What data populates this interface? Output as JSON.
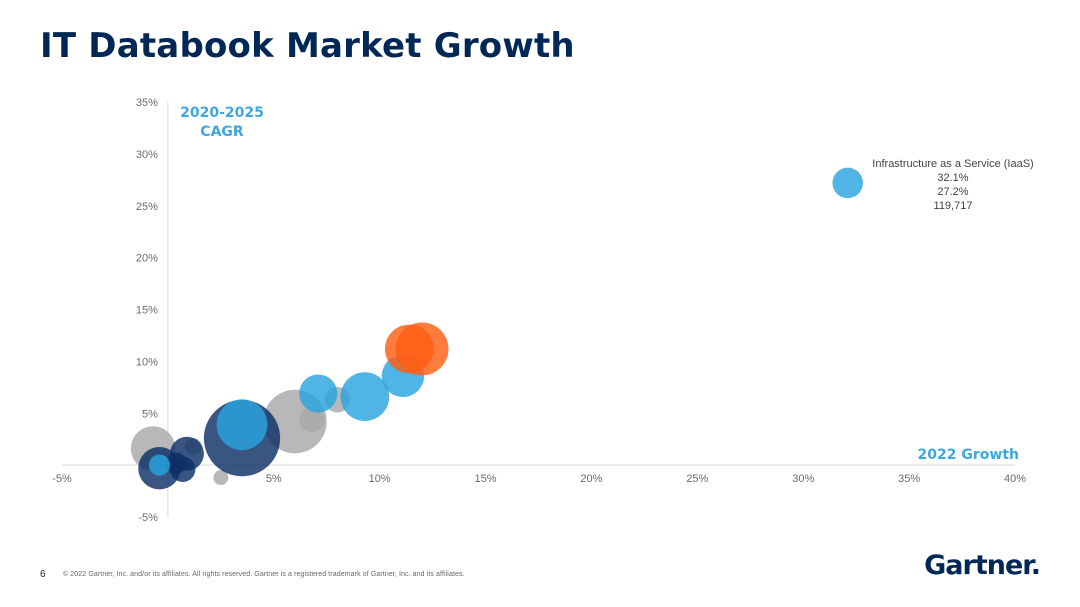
{
  "page": {
    "title": "IT Databook Market Growth",
    "page_number": "6",
    "copyright": "© 2022 Gartner, Inc. and/or its affiliates. All rights reserved. Gartner is a registered trademark of Gartner, Inc. and its affiliates.",
    "logo_text": "Gartner."
  },
  "chart_data": {
    "type": "scatter",
    "subtype": "bubble",
    "title": "",
    "ylabel_lines": [
      "2020-2025",
      "CAGR"
    ],
    "xlabel": "2022 Growth",
    "xlim": [
      -5,
      40
    ],
    "ylim": [
      -5,
      35
    ],
    "x_ticks": [
      -5,
      0,
      5,
      10,
      15,
      20,
      25,
      30,
      35,
      40
    ],
    "y_ticks": [
      -5,
      0,
      5,
      10,
      15,
      20,
      25,
      30,
      35
    ],
    "x_tick_labels": [
      "-5%",
      "",
      "5%",
      "10%",
      "15%",
      "20%",
      "25%",
      "30%",
      "35%",
      "40%"
    ],
    "y_tick_labels": [
      "-5%",
      "",
      "5%",
      "10%",
      "15%",
      "20%",
      "25%",
      "30%",
      "35%"
    ],
    "colors": {
      "light_blue": "#2aa3de",
      "navy": "#0d2f66",
      "orange": "#ff5e14",
      "gray": "#a8a8a8"
    },
    "series": [
      {
        "name": "gray",
        "color": "#a8a8a8",
        "points": [
          {
            "x": -0.7,
            "y": 1.6,
            "r": 1.05
          },
          {
            "x": 6.0,
            "y": 4.2,
            "r": 1.5
          },
          {
            "x": 6.8,
            "y": 4.4,
            "r": 0.6
          },
          {
            "x": 8.0,
            "y": 6.3,
            "r": 0.6
          },
          {
            "x": 1.2,
            "y": 1.8,
            "r": 0.4
          },
          {
            "x": 2.5,
            "y": -1.2,
            "r": 0.35
          }
        ]
      },
      {
        "name": "navy",
        "color": "#0d2f66",
        "points": [
          {
            "x": 3.5,
            "y": 2.6,
            "r": 1.8
          },
          {
            "x": 0.9,
            "y": 1.1,
            "r": 0.8
          },
          {
            "x": 0.7,
            "y": -0.4,
            "r": 0.6
          },
          {
            "x": -0.4,
            "y": -0.3,
            "r": 1.0
          },
          {
            "x": 0.4,
            "y": 0.2,
            "r": 0.5
          }
        ]
      },
      {
        "name": "light_blue",
        "color": "#2aa3de",
        "points": [
          {
            "x": 3.5,
            "y": 3.9,
            "r": 1.2
          },
          {
            "x": 7.1,
            "y": 6.9,
            "r": 0.9
          },
          {
            "x": 9.3,
            "y": 6.6,
            "r": 1.15
          },
          {
            "x": 11.1,
            "y": 8.6,
            "r": 1.0
          },
          {
            "x": 32.1,
            "y": 27.2,
            "r": 0.72,
            "label": "Infrastructure as a Service (IaaS)"
          },
          {
            "x": -0.4,
            "y": 0.0,
            "r": 0.5
          }
        ]
      },
      {
        "name": "orange",
        "color": "#ff5e14",
        "points": [
          {
            "x": 11.4,
            "y": 11.2,
            "r": 1.15
          },
          {
            "x": 12.0,
            "y": 11.2,
            "r": 1.25
          }
        ]
      }
    ],
    "annotations": [
      {
        "series": "light_blue",
        "point_label": "Infrastructure as a Service (IaaS)",
        "lines": [
          "Infrastructure as a Service (IaaS)",
          "32.1%",
          "27.2%",
          "119,717"
        ]
      }
    ]
  }
}
